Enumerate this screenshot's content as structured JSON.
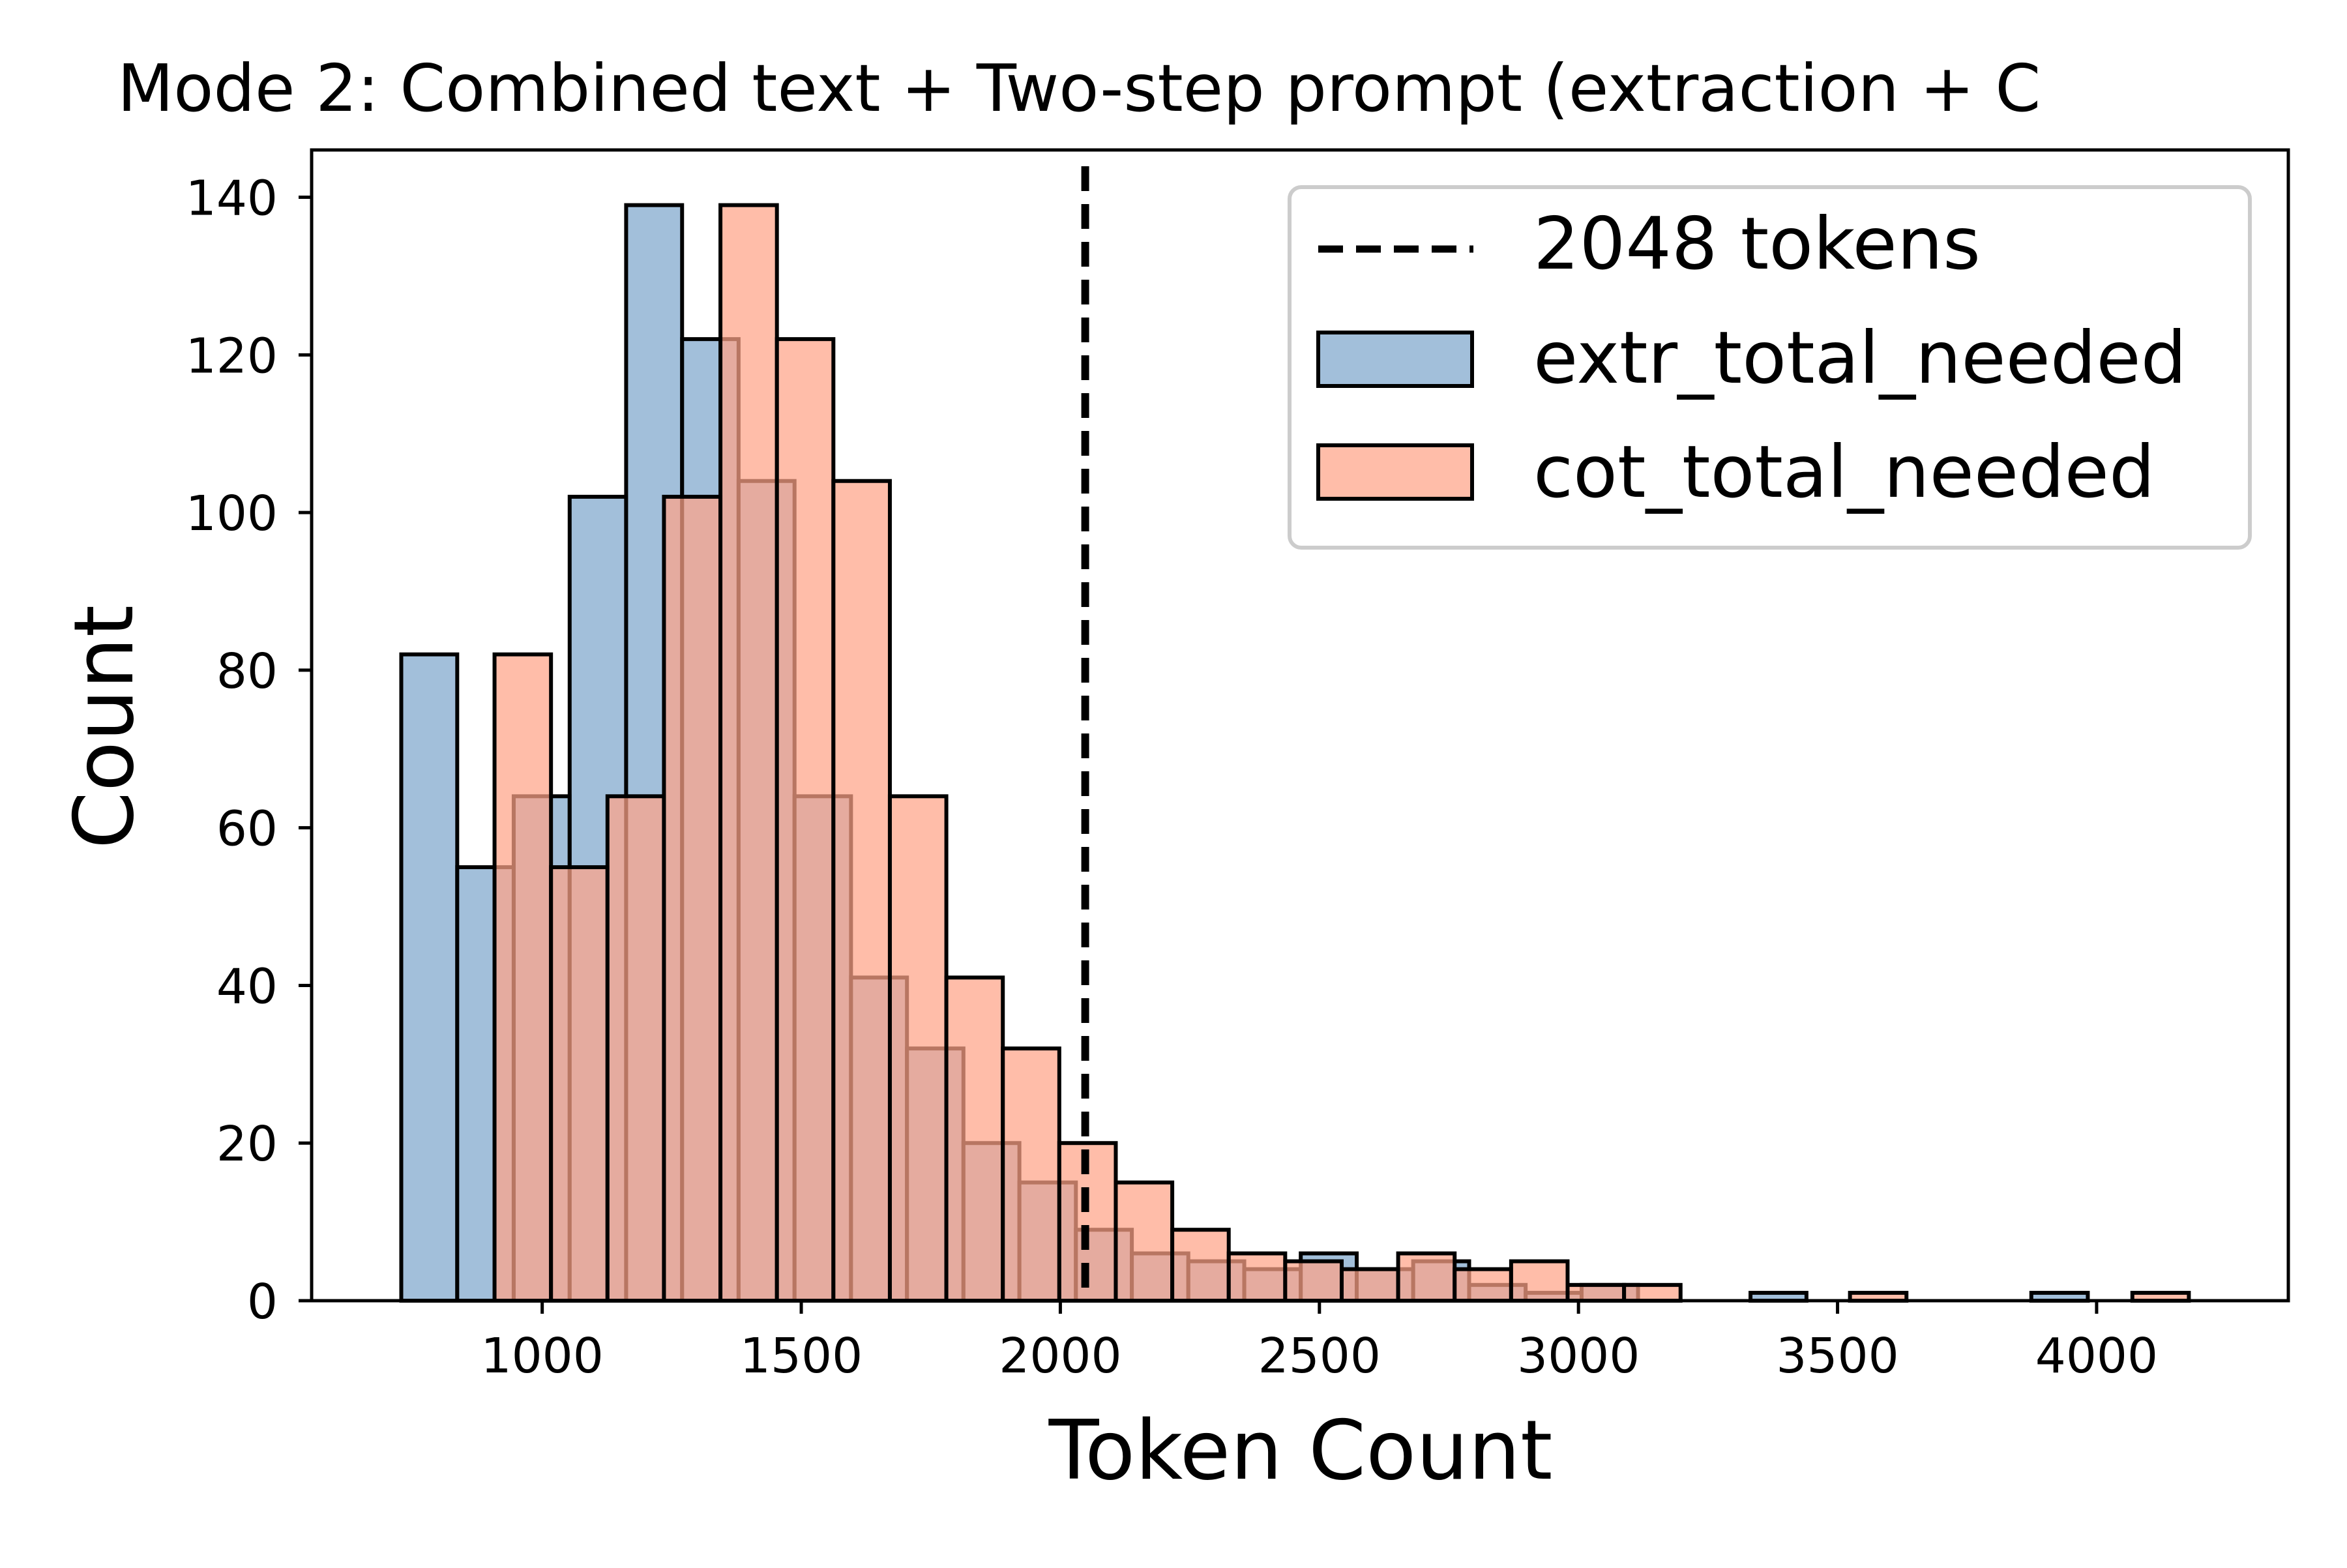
{
  "chart_data": {
    "type": "bar",
    "title": "Mode 2: Combined text + Two-step prompt (extraction + C",
    "xlabel": "Token Count",
    "ylabel": "Count",
    "xlim": [
      555,
      4370
    ],
    "ylim": [
      0,
      146
    ],
    "xticks": [
      1000,
      1500,
      2000,
      2500,
      3000,
      3500,
      4000
    ],
    "yticks": [
      0,
      20,
      40,
      60,
      80,
      100,
      120,
      140
    ],
    "grid": false,
    "legend_position": "top-right",
    "reference_line": {
      "label": "2048 tokens",
      "x": 2048,
      "style": "dashed",
      "color": "#000000"
    },
    "series": [
      {
        "name": "extr_total_needed",
        "color": "#8DB1D2",
        "opacity": 0.82,
        "bins": [
          {
            "x0": 728,
            "x1": 836,
            "count": 82
          },
          {
            "x0": 836,
            "x1": 945,
            "count": 55
          },
          {
            "x0": 945,
            "x1": 1053,
            "count": 64
          },
          {
            "x0": 1053,
            "x1": 1162,
            "count": 102
          },
          {
            "x0": 1162,
            "x1": 1270,
            "count": 139
          },
          {
            "x0": 1270,
            "x1": 1379,
            "count": 122
          },
          {
            "x0": 1379,
            "x1": 1487,
            "count": 104
          },
          {
            "x0": 1487,
            "x1": 1596,
            "count": 64
          },
          {
            "x0": 1596,
            "x1": 1704,
            "count": 41
          },
          {
            "x0": 1704,
            "x1": 1813,
            "count": 32
          },
          {
            "x0": 1813,
            "x1": 1921,
            "count": 20
          },
          {
            "x0": 1921,
            "x1": 2030,
            "count": 15
          },
          {
            "x0": 2030,
            "x1": 2138,
            "count": 9
          },
          {
            "x0": 2138,
            "x1": 2247,
            "count": 6
          },
          {
            "x0": 2247,
            "x1": 2355,
            "count": 5
          },
          {
            "x0": 2355,
            "x1": 2464,
            "count": 4
          },
          {
            "x0": 2464,
            "x1": 2572,
            "count": 6
          },
          {
            "x0": 2572,
            "x1": 2681,
            "count": 4
          },
          {
            "x0": 2681,
            "x1": 2789,
            "count": 5
          },
          {
            "x0": 2789,
            "x1": 2898,
            "count": 2
          },
          {
            "x0": 2898,
            "x1": 3006,
            "count": 1
          },
          {
            "x0": 3006,
            "x1": 3115,
            "count": 2
          },
          {
            "x0": 3115,
            "x1": 3223,
            "count": 0
          },
          {
            "x0": 3223,
            "x1": 3332,
            "count": 0
          },
          {
            "x0": 3332,
            "x1": 3440,
            "count": 1
          },
          {
            "x0": 3440,
            "x1": 3549,
            "count": 0
          },
          {
            "x0": 3549,
            "x1": 3657,
            "count": 0
          },
          {
            "x0": 3657,
            "x1": 3766,
            "count": 0
          },
          {
            "x0": 3766,
            "x1": 3874,
            "count": 0
          },
          {
            "x0": 3874,
            "x1": 3983,
            "count": 1
          }
        ]
      },
      {
        "name": "cot_total_needed",
        "color": "#FFA488",
        "opacity": 0.72,
        "bins": [
          {
            "x0": 908,
            "x1": 1017,
            "count": 82
          },
          {
            "x0": 1017,
            "x1": 1126,
            "count": 55
          },
          {
            "x0": 1126,
            "x1": 1235,
            "count": 64
          },
          {
            "x0": 1235,
            "x1": 1344,
            "count": 102
          },
          {
            "x0": 1344,
            "x1": 1453,
            "count": 139
          },
          {
            "x0": 1453,
            "x1": 1562,
            "count": 122
          },
          {
            "x0": 1562,
            "x1": 1671,
            "count": 104
          },
          {
            "x0": 1671,
            "x1": 1780,
            "count": 64
          },
          {
            "x0": 1780,
            "x1": 1889,
            "count": 41
          },
          {
            "x0": 1889,
            "x1": 1998,
            "count": 32
          },
          {
            "x0": 1998,
            "x1": 2107,
            "count": 20
          },
          {
            "x0": 2107,
            "x1": 2216,
            "count": 15
          },
          {
            "x0": 2216,
            "x1": 2325,
            "count": 9
          },
          {
            "x0": 2325,
            "x1": 2434,
            "count": 6
          },
          {
            "x0": 2434,
            "x1": 2543,
            "count": 5
          },
          {
            "x0": 2543,
            "x1": 2652,
            "count": 4
          },
          {
            "x0": 2652,
            "x1": 2761,
            "count": 6
          },
          {
            "x0": 2761,
            "x1": 2870,
            "count": 4
          },
          {
            "x0": 2870,
            "x1": 2979,
            "count": 5
          },
          {
            "x0": 2979,
            "x1": 3088,
            "count": 2
          },
          {
            "x0": 3088,
            "x1": 3197,
            "count": 2
          },
          {
            "x0": 3197,
            "x1": 3306,
            "count": 0
          },
          {
            "x0": 3306,
            "x1": 3415,
            "count": 0
          },
          {
            "x0": 3415,
            "x1": 3524,
            "count": 0
          },
          {
            "x0": 3524,
            "x1": 3633,
            "count": 1
          },
          {
            "x0": 3633,
            "x1": 3742,
            "count": 0
          },
          {
            "x0": 3742,
            "x1": 3851,
            "count": 0
          },
          {
            "x0": 3851,
            "x1": 3960,
            "count": 0
          },
          {
            "x0": 3960,
            "x1": 4069,
            "count": 0
          },
          {
            "x0": 4069,
            "x1": 4178,
            "count": 1
          }
        ]
      }
    ]
  }
}
